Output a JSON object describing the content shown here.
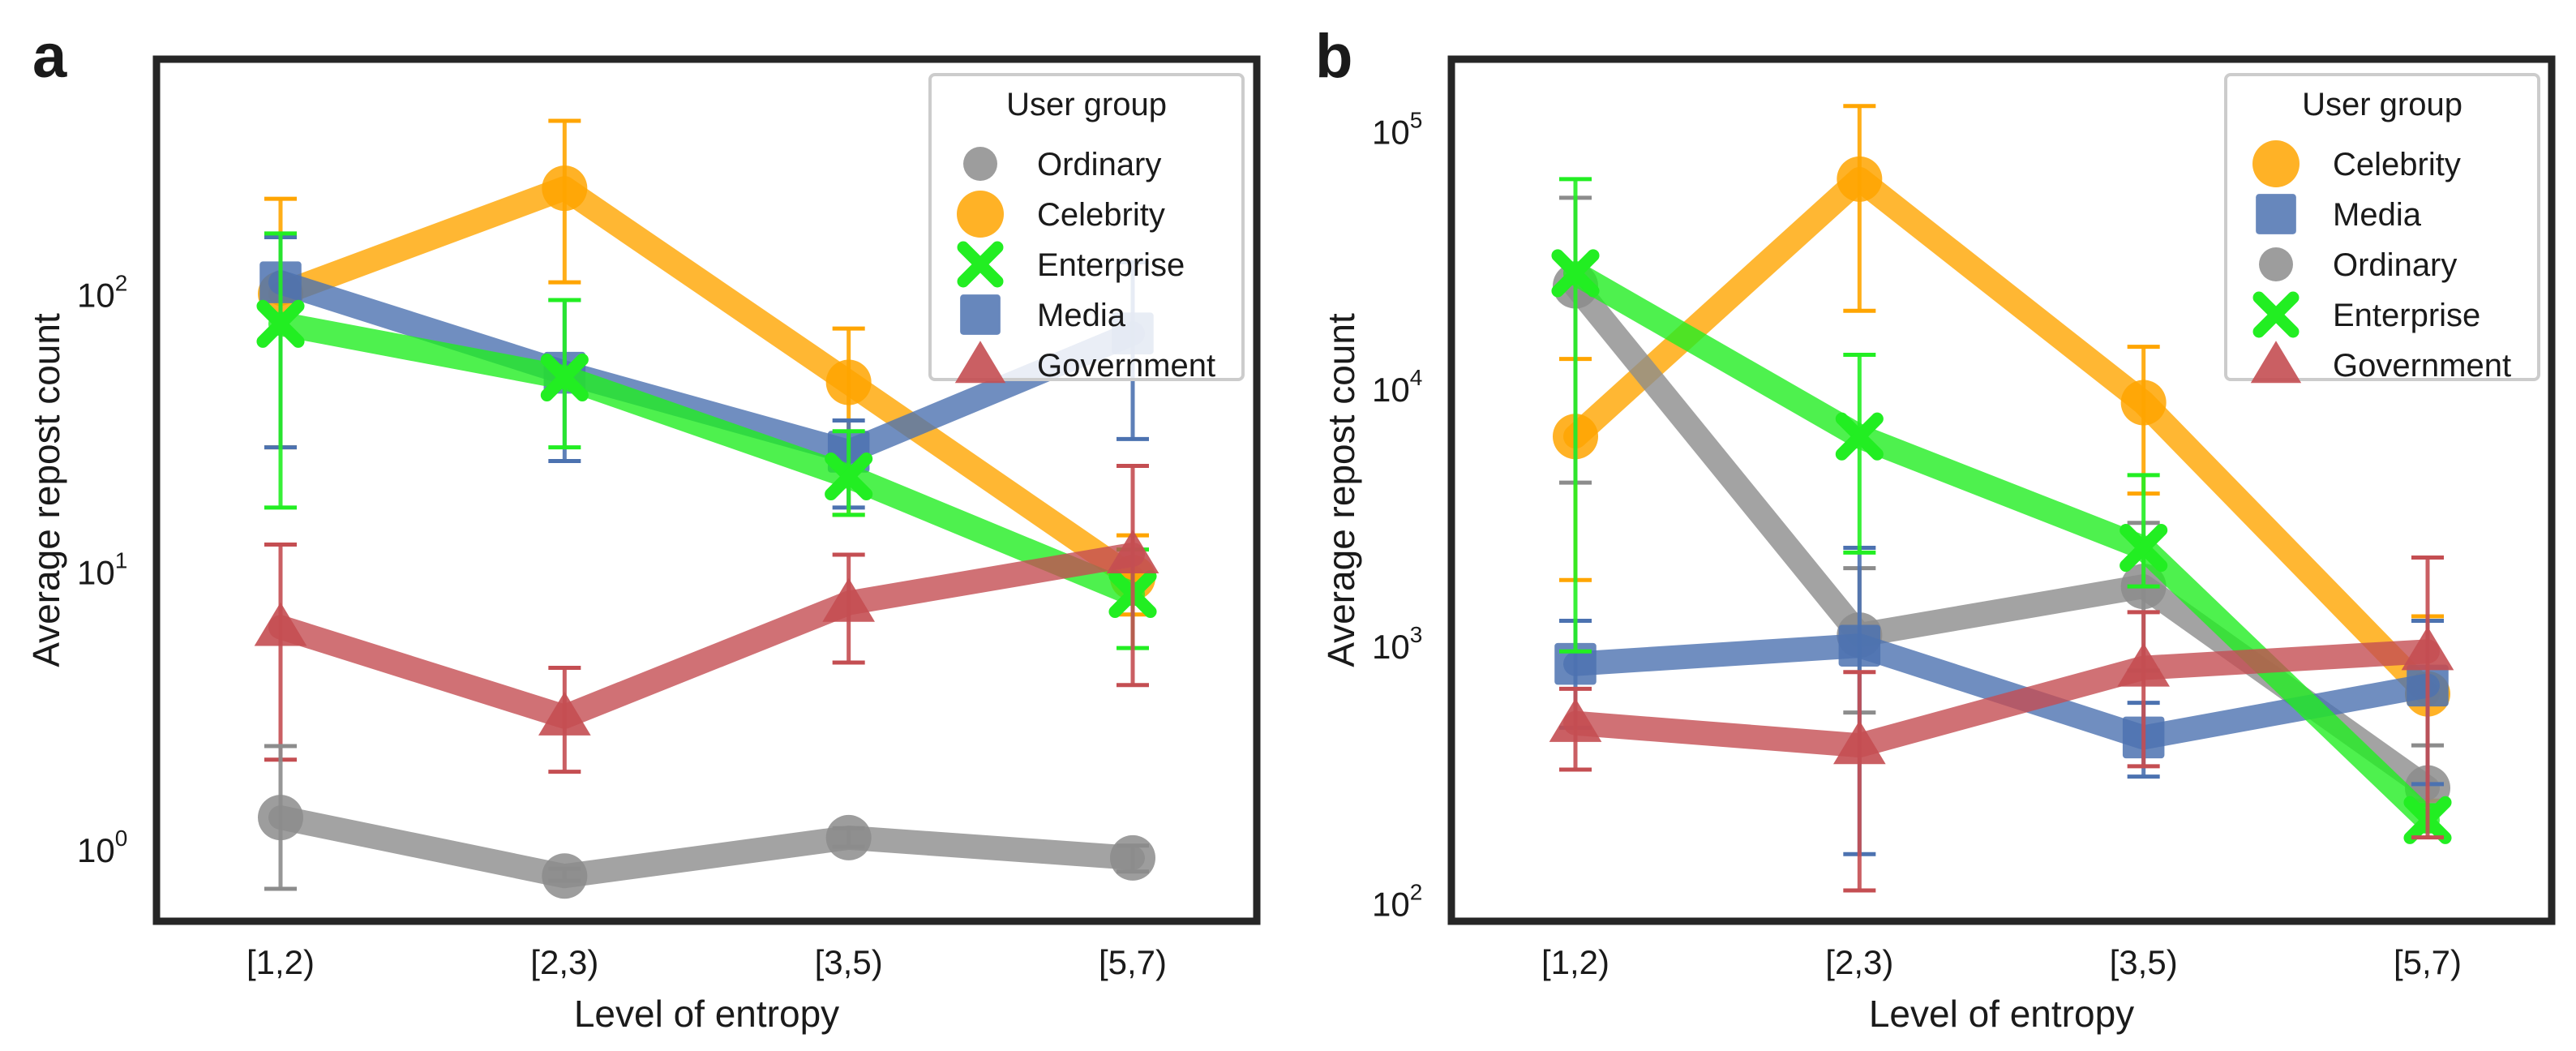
{
  "chart_data": [
    {
      "panel_label": "a",
      "type": "line",
      "xlabel": "Level of entropy",
      "ylabel": "Average repost count",
      "yscale": "log",
      "ylim": [
        0.55,
        700
      ],
      "y_ticks": [
        {
          "value": 1,
          "base": "10",
          "exp": "0"
        },
        {
          "value": 10,
          "base": "10",
          "exp": "1"
        },
        {
          "value": 100,
          "base": "10",
          "exp": "2"
        }
      ],
      "categories": [
        "[1,2)",
        "[2,3)",
        "[3,5)",
        "[5,7)"
      ],
      "legend": {
        "title": "User group",
        "position": "top-right",
        "order": [
          "Ordinary",
          "Celebrity",
          "Enterprise",
          "Media",
          "Government"
        ]
      },
      "series": [
        {
          "name": "Celebrity",
          "color": "#ffa500",
          "marker": "circle",
          "values": [
            100,
            240,
            48,
            9.5
          ],
          "err_low": [
            28,
            110,
            16,
            7
          ],
          "err_high": [
            220,
            420,
            75,
            13.5
          ]
        },
        {
          "name": "Media",
          "color": "#4c72b0",
          "marker": "square",
          "values": [
            110,
            52,
            27,
            72
          ],
          "err_low": [
            28,
            25,
            17,
            30
          ],
          "err_high": [
            160,
            95,
            35,
            130
          ]
        },
        {
          "name": "Enterprise",
          "color": "#22ee22",
          "marker": "x",
          "values": [
            78,
            50,
            22,
            8.3
          ],
          "err_low": [
            17,
            28,
            16,
            5.3
          ],
          "err_high": [
            165,
            95,
            32,
            12
          ]
        },
        {
          "name": "Government",
          "color": "#c44e52",
          "marker": "triangle",
          "values": [
            6.3,
            3.0,
            7.7,
            11.5
          ],
          "err_low": [
            2.1,
            1.9,
            4.7,
            3.9
          ],
          "err_high": [
            12.5,
            4.5,
            11.5,
            24
          ]
        },
        {
          "name": "Ordinary",
          "color": "#8c8c8c",
          "marker": "circle",
          "values": [
            1.3,
            0.8,
            1.1,
            0.93
          ],
          "err_low": [
            0.72,
            0.77,
            1.02,
            0.83
          ],
          "err_high": [
            2.35,
            0.85,
            1.19,
            1.03
          ]
        }
      ]
    },
    {
      "panel_label": "b",
      "type": "line",
      "xlabel": "Level of entropy",
      "ylabel": "Average repost count",
      "yscale": "log",
      "ylim": [
        85,
        190000
      ],
      "y_ticks": [
        {
          "value": 100,
          "base": "10",
          "exp": "2"
        },
        {
          "value": 1000,
          "base": "10",
          "exp": "3"
        },
        {
          "value": 10000,
          "base": "10",
          "exp": "4"
        },
        {
          "value": 100000,
          "base": "10",
          "exp": "5"
        }
      ],
      "categories": [
        "[1,2)",
        "[2,3)",
        "[3,5)",
        "[5,7)"
      ],
      "legend": {
        "title": "User group",
        "position": "top-right",
        "order": [
          "Celebrity",
          "Media",
          "Ordinary",
          "Enterprise",
          "Government"
        ]
      },
      "series": [
        {
          "name": "Celebrity",
          "color": "#ffa500",
          "marker": "circle",
          "values": [
            6500,
            65000,
            8800,
            650
          ],
          "err_low": [
            1800,
            20000,
            3900,
            250
          ],
          "err_high": [
            13000,
            125000,
            14500,
            1300
          ]
        },
        {
          "name": "Ordinary",
          "color": "#8c8c8c",
          "marker": "circle",
          "values": [
            25000,
            1100,
            1700,
            280
          ],
          "err_low": [
            4300,
            550,
            800,
            190
          ],
          "err_high": [
            55000,
            2000,
            3000,
            410
          ]
        },
        {
          "name": "Media",
          "color": "#4c72b0",
          "marker": "square",
          "values": [
            850,
            1000,
            440,
            700
          ],
          "err_low": [
            480,
            155,
            310,
            290
          ],
          "err_high": [
            1250,
            2400,
            600,
            1250
          ]
        },
        {
          "name": "Enterprise",
          "color": "#22ee22",
          "marker": "x",
          "values": [
            28000,
            6500,
            2400,
            210
          ],
          "err_low": [
            950,
            2300,
            1700,
            190
          ],
          "err_high": [
            65000,
            13500,
            4600,
            240
          ]
        },
        {
          "name": "Government",
          "color": "#c44e52",
          "marker": "triangle",
          "values": [
            500,
            410,
            820,
            950
          ],
          "err_low": [
            330,
            112,
            340,
            180
          ],
          "err_high": [
            680,
            790,
            1350,
            2200
          ]
        }
      ]
    }
  ]
}
